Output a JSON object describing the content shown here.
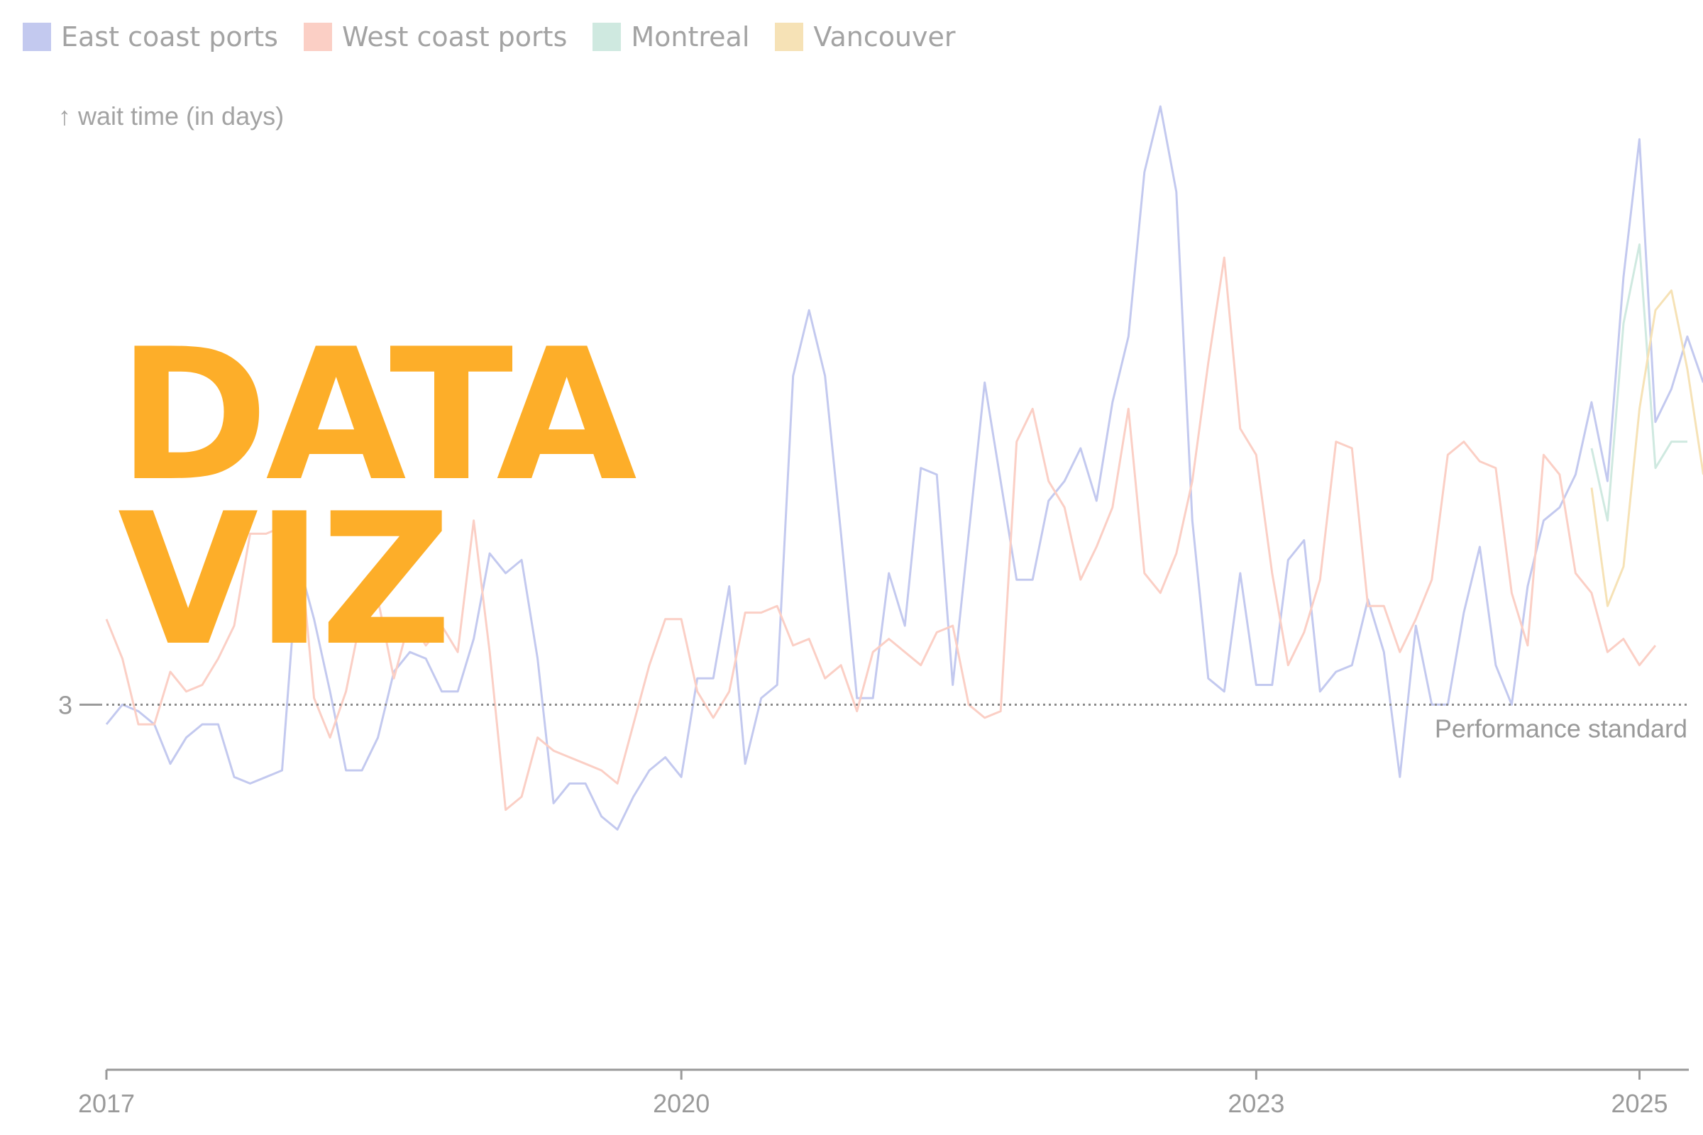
{
  "legend": [
    {
      "label": "East coast ports",
      "color": "#c3c9ef"
    },
    {
      "label": "West coast ports",
      "color": "#fbcfc5"
    },
    {
      "label": "Montreal",
      "color": "#cfe9e0"
    },
    {
      "label": "Vancouver",
      "color": "#f6e2b6"
    }
  ],
  "overlay": {
    "line1": "DATA",
    "line2": "VIZ",
    "color": "#fdae29"
  },
  "chart_data": {
    "type": "line",
    "ylabel": "↑ wait time (in days)",
    "xlabel": "",
    "x_ticks": [
      "2017",
      "2020",
      "2023",
      "2025"
    ],
    "y_ticks": [
      3
    ],
    "reference_line": {
      "value": 3,
      "label": "Performance standard"
    },
    "xlim": [
      2017.0,
      2025.25
    ],
    "ylim": [
      0.5,
      12.1
    ],
    "series": [
      {
        "name": "East coast ports",
        "color": "#c3c9ef",
        "start": 2017.0,
        "step": 0.08333,
        "values": [
          2.7,
          3.0,
          2.9,
          2.7,
          2.1,
          2.5,
          2.7,
          2.7,
          1.9,
          1.8,
          1.9,
          2.0,
          5.2,
          4.3,
          3.2,
          2.0,
          2.0,
          2.5,
          3.5,
          3.8,
          3.7,
          3.2,
          3.2,
          4.0,
          5.3,
          5.0,
          5.2,
          3.7,
          1.5,
          1.8,
          1.8,
          1.3,
          1.1,
          1.6,
          2.0,
          2.2,
          1.9,
          3.4,
          3.4,
          4.8,
          2.1,
          3.1,
          3.3,
          8.0,
          9.0,
          8.0,
          5.6,
          3.1,
          3.1,
          5.0,
          4.2,
          6.6,
          6.5,
          3.3,
          5.6,
          7.9,
          6.4,
          4.9,
          4.9,
          6.1,
          6.4,
          6.9,
          6.1,
          7.6,
          8.6,
          11.1,
          12.1,
          10.8,
          5.8,
          3.4,
          3.2,
          5.0,
          3.3,
          3.3,
          5.2,
          5.5,
          3.2,
          3.5,
          3.6,
          4.6,
          3.8,
          1.9,
          4.2,
          3.0,
          3.0,
          4.4,
          5.4,
          3.6,
          3.0,
          4.8,
          5.8,
          6.0,
          6.5,
          7.6,
          6.4,
          9.5,
          11.6,
          7.3,
          7.8,
          8.6,
          7.9
        ],
        "points_note": ""
      },
      {
        "name": "West coast ports",
        "color": "#fbcfc5",
        "start": 2017.0,
        "step": 0.08333,
        "values": [
          4.3,
          3.7,
          2.7,
          2.7,
          3.5,
          3.2,
          3.3,
          3.7,
          4.2,
          5.6,
          5.6,
          5.7,
          5.7,
          3.1,
          2.5,
          3.2,
          4.4,
          4.6,
          3.4,
          4.3,
          3.9,
          4.2,
          3.8,
          5.8,
          3.8,
          1.4,
          1.6,
          2.5,
          2.3,
          2.2,
          2.1,
          2.0,
          1.8,
          2.7,
          3.6,
          4.3,
          4.3,
          3.2,
          2.8,
          3.2,
          4.4,
          4.4,
          4.5,
          3.9,
          4.0,
          3.4,
          3.6,
          2.9,
          3.8,
          4.0,
          3.8,
          3.6,
          4.1,
          4.2,
          3.0,
          2.8,
          2.9,
          7.0,
          7.5,
          6.4,
          6.0,
          4.9,
          5.4,
          6.0,
          7.5,
          5.0,
          4.7,
          5.3,
          6.4,
          8.2,
          9.8,
          7.2,
          6.8,
          5.0,
          3.6,
          4.1,
          4.9,
          7.0,
          6.9,
          4.5,
          4.5,
          3.8,
          4.3,
          4.9,
          6.8,
          7.0,
          6.7,
          6.6,
          4.7,
          3.9,
          6.8,
          6.5,
          5.0,
          4.7,
          3.8,
          4.0,
          3.6,
          3.9
        ],
        "points_note": ""
      },
      {
        "name": "Montreal",
        "color": "#cfe9e0",
        "start": 2024.75,
        "step": 0.08333,
        "values": [
          6.9,
          5.8,
          8.8,
          10.0,
          6.6,
          7.0,
          7.0
        ],
        "points_note": ""
      },
      {
        "name": "Vancouver",
        "color": "#f6e2b6",
        "start": 2024.75,
        "step": 0.08333,
        "values": [
          6.3,
          4.5,
          5.1,
          7.5,
          9.0,
          9.3,
          8.1,
          6.5
        ],
        "points_note": ""
      }
    ],
    "grid": false,
    "legend_position": "top-left"
  }
}
